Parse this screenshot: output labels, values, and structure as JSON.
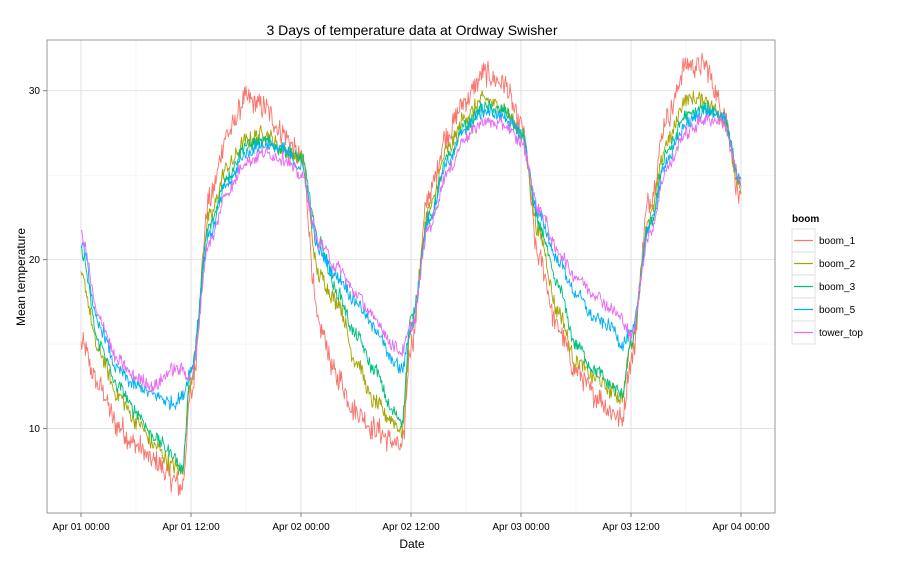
{
  "chart_data": {
    "type": "line",
    "title": "3 Days of temperature data at Ordway Swisher",
    "xlabel": "Date",
    "ylabel": "Mean temperature",
    "x_ticks": [
      "Apr 01 00:00",
      "Apr 01 12:00",
      "Apr 02 00:00",
      "Apr 02 12:00",
      "Apr 03 00:00",
      "Apr 03 12:00",
      "Apr 04 00:00"
    ],
    "y_ticks": [
      10,
      20,
      30
    ],
    "xlim": [
      "Apr 01 00:00",
      "Apr 04 00:00"
    ],
    "ylim": [
      5,
      33
    ],
    "grid": true,
    "legend_title": "boom",
    "legend_position": "right",
    "series_hours": [
      0,
      2,
      4,
      6,
      8,
      10,
      11,
      12,
      14,
      16,
      18,
      20,
      22,
      24,
      26,
      28,
      30,
      32,
      34,
      35,
      36,
      38,
      40,
      42,
      44,
      46,
      48,
      50,
      52,
      54,
      56,
      58,
      59,
      60,
      62,
      64,
      66,
      68,
      70,
      72
    ],
    "series": [
      {
        "name": "boom_1",
        "color": "#F8766D",
        "noise": 0.8,
        "values": [
          15.0,
          12.5,
          10.2,
          9.0,
          8.0,
          7.0,
          6.5,
          12.0,
          23.5,
          27.5,
          29.5,
          29.0,
          27.5,
          26.0,
          16.0,
          13.0,
          11.0,
          10.0,
          9.2,
          8.8,
          15.0,
          24.0,
          27.5,
          29.5,
          31.0,
          30.5,
          28.0,
          20.0,
          16.0,
          13.5,
          12.0,
          11.0,
          10.5,
          14.0,
          23.5,
          28.5,
          31.5,
          31.5,
          29.0,
          23.5
        ]
      },
      {
        "name": "boom_2",
        "color": "#A3A500",
        "noise": 0.55,
        "values": [
          19.0,
          14.5,
          12.0,
          10.5,
          9.0,
          7.8,
          7.5,
          13.0,
          22.5,
          25.5,
          27.0,
          27.5,
          26.5,
          26.0,
          19.0,
          17.5,
          14.0,
          11.5,
          10.5,
          9.8,
          16.0,
          23.0,
          26.5,
          28.5,
          29.5,
          29.0,
          27.5,
          21.5,
          17.0,
          14.0,
          13.0,
          12.2,
          11.8,
          15.0,
          22.5,
          27.0,
          29.5,
          29.5,
          28.5,
          24.0
        ]
      },
      {
        "name": "boom_3",
        "color": "#00BF7D",
        "noise": 0.45,
        "values": [
          20.5,
          15.0,
          12.5,
          11.0,
          9.5,
          8.5,
          7.5,
          13.5,
          22.0,
          25.0,
          26.8,
          27.0,
          26.5,
          26.0,
          21.0,
          18.0,
          15.5,
          13.5,
          11.0,
          10.5,
          16.5,
          22.5,
          26.0,
          28.0,
          29.0,
          28.8,
          27.5,
          22.0,
          18.5,
          15.0,
          13.5,
          12.5,
          12.0,
          15.0,
          22.0,
          26.5,
          28.5,
          29.0,
          28.5,
          24.5
        ]
      },
      {
        "name": "boom_5",
        "color": "#00B0F6",
        "noise": 0.45,
        "values": [
          21.0,
          16.0,
          13.5,
          12.5,
          12.0,
          11.5,
          11.8,
          13.5,
          21.5,
          24.5,
          26.3,
          26.8,
          26.5,
          25.5,
          20.5,
          19.0,
          17.5,
          16.0,
          14.0,
          13.5,
          16.0,
          22.5,
          25.8,
          27.8,
          28.8,
          28.5,
          27.5,
          22.5,
          20.0,
          18.0,
          16.5,
          16.0,
          15.0,
          15.5,
          22.0,
          26.0,
          28.0,
          28.8,
          28.5,
          24.5
        ]
      },
      {
        "name": "tower_top",
        "color": "#E76BF3",
        "noise": 0.45,
        "values": [
          21.5,
          16.5,
          14.0,
          13.0,
          12.5,
          13.5,
          13.5,
          13.0,
          21.0,
          24.0,
          25.8,
          26.3,
          26.0,
          25.0,
          21.0,
          19.5,
          18.0,
          16.5,
          15.0,
          14.5,
          16.0,
          22.0,
          25.2,
          27.3,
          28.2,
          28.0,
          27.0,
          23.0,
          20.5,
          19.0,
          18.0,
          17.0,
          16.5,
          15.5,
          21.5,
          25.5,
          27.5,
          28.3,
          28.2,
          24.5
        ]
      }
    ]
  }
}
